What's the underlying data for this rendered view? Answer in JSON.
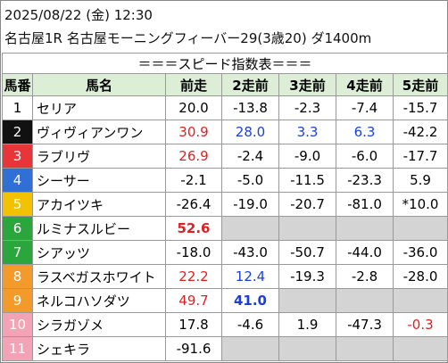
{
  "header": {
    "datetime": "2025/08/22 (金) 12:30",
    "race": "名古屋1R 名古屋モーニングフィーバー29(3歳20) ダ1400m"
  },
  "table": {
    "title": "＝＝＝スピード指数表＝＝＝",
    "columns": [
      "馬番",
      "馬名",
      "前走",
      "2走前",
      "3走前",
      "4走前",
      "5走前"
    ],
    "rows": [
      {
        "number": "1",
        "frame_color": "#ffffff",
        "number_color": "#000000",
        "name": "セリア",
        "values": [
          "20.0",
          "-13.8",
          "-2.3",
          "-7.4",
          "-15.7"
        ]
      },
      {
        "number": "2",
        "frame_color": "#111111",
        "number_color": "#ffffff",
        "name": "ヴィヴィアンワン",
        "values": [
          {
            "text": "30.9",
            "color": "#e02020"
          },
          {
            "text": "28.0",
            "color": "#1a3fe0"
          },
          {
            "text": "3.3",
            "color": "#1a3fe0"
          },
          {
            "text": "6.3",
            "color": "#1a3fe0"
          },
          "-42.2"
        ]
      },
      {
        "number": "3",
        "frame_color": "#e8353a",
        "number_color": "#ffffff",
        "name": "ラブリヴ",
        "values": [
          {
            "text": "26.9",
            "color": "#e02020"
          },
          "-2.4",
          "-9.0",
          "-6.0",
          "-17.7"
        ]
      },
      {
        "number": "4",
        "frame_color": "#2f6fd6",
        "number_color": "#ffffff",
        "name": "シーサー",
        "values": [
          "-2.1",
          "-5.0",
          "-11.5",
          "-23.3",
          "5.9"
        ]
      },
      {
        "number": "5",
        "frame_color": "#f2c200",
        "number_color": "#ffffff",
        "name": "アカイツキ",
        "values": [
          "-26.4",
          "-19.0",
          "-20.7",
          "-81.0",
          "*10.0"
        ]
      },
      {
        "number": "6",
        "frame_color": "#2aa63c",
        "number_color": "#ffffff",
        "name": "ルミナスルビー",
        "values": [
          {
            "text": "52.6",
            "color": "#e02020",
            "bold": true
          },
          null,
          null,
          null,
          null
        ]
      },
      {
        "number": "7",
        "frame_color": "#2aa63c",
        "number_color": "#ffffff",
        "name": "シアッツ",
        "values": [
          "-18.0",
          "-43.0",
          "-50.7",
          "-44.0",
          "-36.0"
        ]
      },
      {
        "number": "8",
        "frame_color": "#f39a2b",
        "number_color": "#ffffff",
        "name": "ラスベガスホワイト",
        "values": [
          {
            "text": "22.2",
            "color": "#e02020"
          },
          {
            "text": "12.4",
            "color": "#1a3fe0"
          },
          "-19.3",
          "-2.8",
          "-28.0"
        ]
      },
      {
        "number": "9",
        "frame_color": "#f39a2b",
        "number_color": "#ffffff",
        "name": "ネルコハソダツ",
        "values": [
          {
            "text": "49.7",
            "color": "#e02020"
          },
          {
            "text": "41.0",
            "color": "#1a3fe0",
            "bold": true
          },
          null,
          null,
          null
        ]
      },
      {
        "number": "10",
        "frame_color": "#f4a3b6",
        "number_color": "#ffffff",
        "name": "シラガゾメ",
        "values": [
          "17.8",
          "-4.6",
          "1.9",
          "-47.3",
          {
            "text": "-0.3",
            "color": "#e02020"
          }
        ]
      },
      {
        "number": "11",
        "frame_color": "#f4a3b6",
        "number_color": "#ffffff",
        "name": "シェキラ",
        "values": [
          "-91.6",
          null,
          null,
          null,
          null
        ]
      }
    ]
  }
}
